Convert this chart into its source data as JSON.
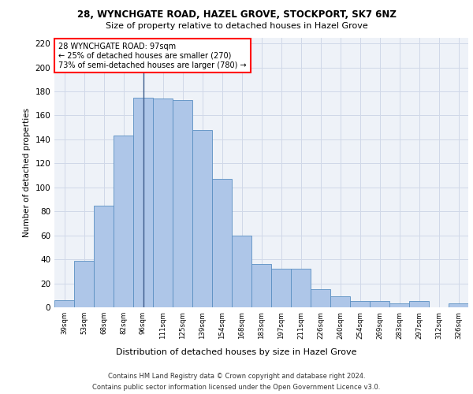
{
  "title1": "28, WYNCHGATE ROAD, HAZEL GROVE, STOCKPORT, SK7 6NZ",
  "title2": "Size of property relative to detached houses in Hazel Grove",
  "xlabel": "Distribution of detached houses by size in Hazel Grove",
  "ylabel": "Number of detached properties",
  "categories": [
    "39sqm",
    "53sqm",
    "68sqm",
    "82sqm",
    "96sqm",
    "111sqm",
    "125sqm",
    "139sqm",
    "154sqm",
    "168sqm",
    "183sqm",
    "197sqm",
    "211sqm",
    "226sqm",
    "240sqm",
    "254sqm",
    "269sqm",
    "283sqm",
    "297sqm",
    "312sqm",
    "326sqm"
  ],
  "values": [
    6,
    39,
    85,
    143,
    175,
    174,
    173,
    148,
    107,
    60,
    36,
    32,
    32,
    15,
    9,
    5,
    5,
    3,
    5,
    0,
    3
  ],
  "bar_color": "#aec6e8",
  "bar_edge_color": "#5a8fc2",
  "grid_color": "#d0d8e8",
  "background_color": "#eef2f8",
  "vline_x_index": 4,
  "vline_color": "#3a5a8a",
  "annotation_box_text": "28 WYNCHGATE ROAD: 97sqm\n← 25% of detached houses are smaller (270)\n73% of semi-detached houses are larger (780) →",
  "annotation_box_color": "white",
  "annotation_box_edge_color": "red",
  "footnote1": "Contains HM Land Registry data © Crown copyright and database right 2024.",
  "footnote2": "Contains public sector information licensed under the Open Government Licence v3.0.",
  "ylim": [
    0,
    225
  ],
  "yticks": [
    0,
    20,
    40,
    60,
    80,
    100,
    120,
    140,
    160,
    180,
    200,
    220
  ]
}
